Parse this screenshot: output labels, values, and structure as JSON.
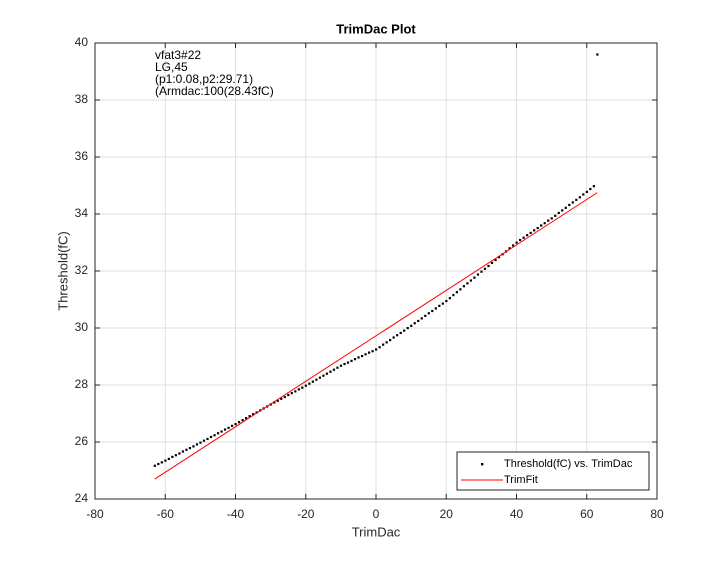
{
  "chart_data": {
    "type": "scatter",
    "title": "TrimDac Plot",
    "xlabel": "TrimDac",
    "ylabel": "Threshold(fC)",
    "annotations": [
      "vfat3#22",
      "LG,45",
      "(p1:0.08,p2:29.71)",
      "(Armdac:100(28.43fC)"
    ],
    "xlim": [
      -80,
      80
    ],
    "xticks": [
      -80,
      -60,
      -40,
      -20,
      0,
      20,
      40,
      60,
      80
    ],
    "ylim": [
      24,
      40
    ],
    "yticks": [
      24,
      26,
      28,
      30,
      32,
      34,
      36,
      38,
      40
    ],
    "grid": true,
    "legend": "southeast",
    "series": [
      {
        "name": "Threshold(fC) vs. TrimDac",
        "color": "#000000",
        "mode": "markers",
        "x": [
          -63,
          -62,
          -61,
          -60,
          -59,
          -58,
          -57,
          -56,
          -55,
          -54,
          -53,
          -52,
          -51,
          -50,
          -49,
          -48,
          -47,
          -46,
          -45,
          -44,
          -43,
          -42,
          -41,
          -40,
          -39,
          -38,
          -37,
          -36,
          -35,
          -34,
          -33,
          -32,
          -31,
          -30,
          -29,
          -28,
          -27,
          -26,
          -25,
          -24,
          -23,
          -22,
          -21,
          -20,
          -19,
          -18,
          -17,
          -16,
          -15,
          -14,
          -13,
          -12,
          -11,
          -10,
          -9,
          -8,
          -7,
          -6,
          -5,
          -4,
          -3,
          -2,
          -1,
          0,
          1,
          2,
          3,
          4,
          5,
          6,
          7,
          8,
          9,
          10,
          11,
          12,
          13,
          14,
          15,
          16,
          17,
          18,
          19,
          20,
          21,
          22,
          23,
          24,
          25,
          26,
          27,
          28,
          29,
          30,
          31,
          32,
          33,
          34,
          35,
          36,
          37,
          38,
          39,
          40,
          41,
          42,
          43,
          44,
          45,
          46,
          47,
          48,
          49,
          50,
          51,
          52,
          53,
          54,
          55,
          56,
          57,
          58,
          59,
          60,
          61,
          62,
          63
        ],
        "values": [
          25.17,
          25.23,
          25.29,
          25.35,
          25.41,
          25.48,
          25.54,
          25.6,
          25.67,
          25.73,
          25.79,
          25.85,
          25.92,
          25.98,
          26.05,
          26.11,
          26.18,
          26.24,
          26.31,
          26.37,
          26.44,
          26.5,
          26.57,
          26.63,
          26.7,
          26.77,
          26.84,
          26.91,
          26.98,
          27.04,
          27.11,
          27.18,
          27.25,
          27.32,
          27.39,
          27.45,
          27.52,
          27.58,
          27.65,
          27.72,
          27.78,
          27.85,
          27.91,
          27.98,
          28.05,
          28.12,
          28.19,
          28.26,
          28.33,
          28.4,
          28.47,
          28.54,
          28.61,
          28.68,
          28.74,
          28.79,
          28.85,
          28.91,
          28.97,
          29.02,
          29.08,
          29.14,
          29.19,
          29.25,
          29.33,
          29.42,
          29.5,
          29.58,
          29.67,
          29.75,
          29.83,
          29.91,
          30.0,
          30.08,
          30.17,
          30.25,
          30.34,
          30.43,
          30.52,
          30.6,
          30.69,
          30.78,
          30.86,
          30.95,
          31.05,
          31.16,
          31.26,
          31.36,
          31.47,
          31.57,
          31.67,
          31.77,
          31.88,
          31.98,
          32.08,
          32.18,
          32.29,
          32.39,
          32.49,
          32.59,
          32.69,
          32.8,
          32.9,
          33.0,
          33.09,
          33.17,
          33.26,
          33.34,
          33.43,
          33.51,
          33.6,
          33.68,
          33.77,
          33.85,
          33.94,
          34.04,
          34.13,
          34.22,
          34.32,
          34.41,
          34.5,
          34.59,
          34.69,
          34.78,
          34.88,
          34.98,
          39.6
        ]
      },
      {
        "name": "TrimFit",
        "color": "#ff0000",
        "mode": "line",
        "x": [
          -63,
          63
        ],
        "values": [
          24.7,
          34.75
        ]
      }
    ]
  }
}
